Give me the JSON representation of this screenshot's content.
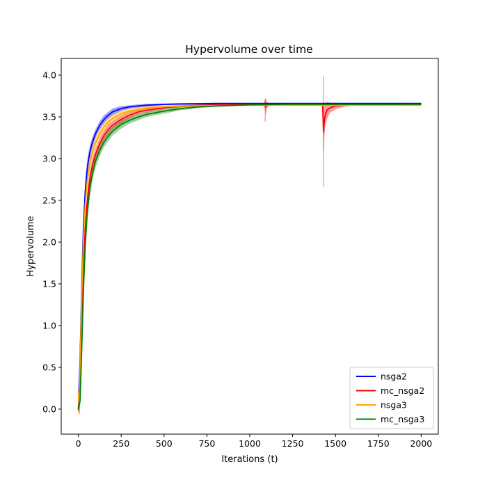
{
  "chart_data": {
    "type": "line",
    "title": "Hypervolume over time",
    "xlabel": "Iterations (t)",
    "ylabel": "Hypervolume",
    "xlim": [
      -100,
      2100
    ],
    "ylim": [
      -0.3,
      4.2
    ],
    "x_ticks": [
      0,
      250,
      500,
      750,
      1000,
      1250,
      1500,
      1750,
      2000
    ],
    "y_ticks": [
      0.0,
      0.5,
      1.0,
      1.5,
      2.0,
      2.5,
      3.0,
      3.5,
      4.0
    ],
    "x_tick_labels": [
      "0",
      "250",
      "500",
      "750",
      "1000",
      "1250",
      "1500",
      "1750",
      "2000"
    ],
    "y_tick_labels": [
      "0.0",
      "0.5",
      "1.0",
      "1.5",
      "2.0",
      "2.5",
      "3.0",
      "3.5",
      "4.0"
    ],
    "grid": false,
    "legend_position": "lower-right",
    "series": [
      {
        "name": "nsga2",
        "color": "#0000ff",
        "x": [
          0,
          10,
          20,
          30,
          40,
          50,
          60,
          70,
          80,
          90,
          100,
          125,
          150,
          175,
          200,
          250,
          300,
          350,
          400,
          500,
          600,
          800,
          1000,
          1200,
          1500,
          2000
        ],
        "y": [
          0.0,
          0.6,
          1.5,
          2.2,
          2.6,
          2.85,
          3.0,
          3.1,
          3.18,
          3.24,
          3.3,
          3.4,
          3.47,
          3.52,
          3.56,
          3.6,
          3.62,
          3.63,
          3.64,
          3.65,
          3.655,
          3.66,
          3.66,
          3.66,
          3.66,
          3.66
        ],
        "band": [
          0.04,
          0.15,
          0.15,
          0.14,
          0.12,
          0.1,
          0.09,
          0.08,
          0.07,
          0.06,
          0.05,
          0.05,
          0.05,
          0.04,
          0.04,
          0.03,
          0.02,
          0.02,
          0.015,
          0.01,
          0.01,
          0.01,
          0.01,
          0.01,
          0.01,
          0.01
        ]
      },
      {
        "name": "mc_nsga2",
        "color": "#ff0000",
        "x": [
          0,
          10,
          20,
          30,
          40,
          50,
          60,
          70,
          80,
          90,
          100,
          125,
          150,
          175,
          200,
          250,
          300,
          350,
          400,
          500,
          600,
          800,
          1000,
          1080,
          1090,
          1095,
          1100,
          1110,
          1130,
          1200,
          1400,
          1425,
          1430,
          1435,
          1440,
          1450,
          1470,
          1500,
          1550,
          1600,
          2000
        ],
        "y": [
          -0.02,
          0.3,
          1.0,
          1.7,
          2.15,
          2.45,
          2.65,
          2.8,
          2.9,
          2.98,
          3.05,
          3.18,
          3.28,
          3.35,
          3.4,
          3.47,
          3.52,
          3.56,
          3.58,
          3.61,
          3.63,
          3.645,
          3.65,
          3.65,
          3.64,
          3.62,
          3.64,
          3.65,
          3.65,
          3.65,
          3.65,
          3.65,
          3.32,
          3.45,
          3.52,
          3.58,
          3.61,
          3.63,
          3.64,
          3.645,
          3.65
        ],
        "band": [
          0.05,
          0.1,
          0.12,
          0.12,
          0.11,
          0.1,
          0.09,
          0.09,
          0.08,
          0.08,
          0.07,
          0.07,
          0.06,
          0.06,
          0.05,
          0.05,
          0.04,
          0.03,
          0.03,
          0.02,
          0.015,
          0.01,
          0.01,
          0.01,
          0.07,
          0.1,
          0.04,
          0.02,
          0.01,
          0.01,
          0.01,
          0.01,
          0.33,
          0.22,
          0.14,
          0.1,
          0.06,
          0.04,
          0.02,
          0.01,
          0.01
        ]
      },
      {
        "name": "nsga3",
        "color": "#ffa500",
        "x": [
          0,
          5,
          10,
          20,
          30,
          40,
          50,
          60,
          70,
          80,
          90,
          100,
          125,
          150,
          175,
          200,
          250,
          300,
          350,
          400,
          500,
          600,
          800,
          1000,
          1200,
          1500,
          2000
        ],
        "y": [
          0.2,
          -0.05,
          0.5,
          1.4,
          2.05,
          2.45,
          2.7,
          2.86,
          2.97,
          3.06,
          3.13,
          3.19,
          3.3,
          3.38,
          3.44,
          3.48,
          3.54,
          3.57,
          3.59,
          3.61,
          3.62,
          3.63,
          3.635,
          3.64,
          3.64,
          3.64,
          3.64
        ],
        "band": [
          0.05,
          0.03,
          0.12,
          0.13,
          0.12,
          0.11,
          0.1,
          0.09,
          0.08,
          0.08,
          0.07,
          0.07,
          0.06,
          0.06,
          0.05,
          0.05,
          0.04,
          0.03,
          0.03,
          0.02,
          0.015,
          0.01,
          0.01,
          0.01,
          0.01,
          0.01,
          0.01
        ]
      },
      {
        "name": "mc_nsga3",
        "color": "#008000",
        "x": [
          0,
          10,
          20,
          30,
          40,
          50,
          60,
          70,
          80,
          90,
          100,
          125,
          150,
          175,
          200,
          250,
          300,
          350,
          400,
          500,
          600,
          700,
          800,
          1000,
          1200,
          1500,
          2000
        ],
        "y": [
          0.0,
          0.1,
          0.75,
          1.45,
          1.95,
          2.3,
          2.52,
          2.68,
          2.8,
          2.89,
          2.97,
          3.1,
          3.2,
          3.27,
          3.33,
          3.41,
          3.46,
          3.5,
          3.53,
          3.57,
          3.6,
          3.62,
          3.63,
          3.645,
          3.65,
          3.65,
          3.65
        ],
        "band": [
          0.03,
          0.12,
          0.14,
          0.14,
          0.13,
          0.12,
          0.11,
          0.1,
          0.09,
          0.08,
          0.08,
          0.07,
          0.06,
          0.06,
          0.05,
          0.05,
          0.04,
          0.04,
          0.03,
          0.03,
          0.02,
          0.015,
          0.01,
          0.01,
          0.01,
          0.01,
          0.01
        ]
      }
    ],
    "spikes": [
      {
        "series": "mc_nsga2",
        "x": 1090,
        "y_range": [
          3.44,
          3.72
        ]
      },
      {
        "series": "mc_nsga2",
        "x": 1430,
        "y_range": [
          2.66,
          3.99
        ]
      }
    ]
  }
}
